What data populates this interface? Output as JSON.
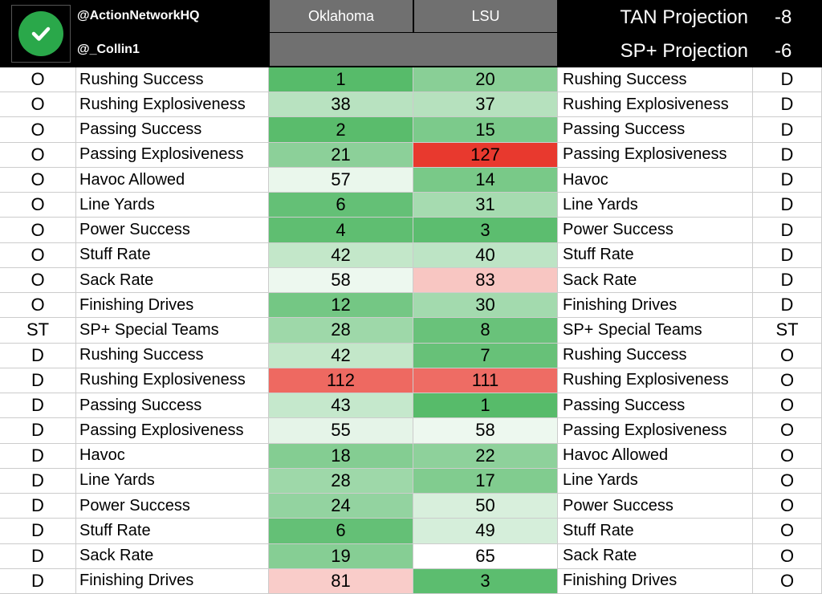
{
  "header": {
    "handle_primary": "@ActionNetworkHQ",
    "handle_secondary": "@_Collin1",
    "team_a": "Oklahoma",
    "team_b": "LSU",
    "projections": [
      {
        "label": "TAN Projection",
        "value": "-8"
      },
      {
        "label": "SP+ Projection",
        "value": "-6"
      }
    ]
  },
  "colors": {
    "best_green": "#57bb6a",
    "neutral_white": "#ffffff",
    "worst_red": "#e8392e"
  },
  "rows": [
    {
      "side_left": "O",
      "stat_left": "Rushing Success",
      "oklahoma": "1",
      "lsu": "20",
      "stat_right": "Rushing Success",
      "side_right": "D"
    },
    {
      "side_left": "O",
      "stat_left": "Rushing Explosiveness",
      "oklahoma": "38",
      "lsu": "37",
      "stat_right": "Rushing Explosiveness",
      "side_right": "D"
    },
    {
      "side_left": "O",
      "stat_left": "Passing Success",
      "oklahoma": "2",
      "lsu": "15",
      "stat_right": "Passing Success",
      "side_right": "D"
    },
    {
      "side_left": "O",
      "stat_left": "Passing Explosiveness",
      "oklahoma": "21",
      "lsu": "127",
      "stat_right": "Passing Explosiveness",
      "side_right": "D"
    },
    {
      "side_left": "O",
      "stat_left": "Havoc Allowed",
      "oklahoma": "57",
      "lsu": "14",
      "stat_right": "Havoc",
      "side_right": "D"
    },
    {
      "side_left": "O",
      "stat_left": "Line Yards",
      "oklahoma": "6",
      "lsu": "31",
      "stat_right": "Line Yards",
      "side_right": "D"
    },
    {
      "side_left": "O",
      "stat_left": "Power Success",
      "oklahoma": "4",
      "lsu": "3",
      "stat_right": "Power Success",
      "side_right": "D"
    },
    {
      "side_left": "O",
      "stat_left": "Stuff Rate",
      "oklahoma": "42",
      "lsu": "40",
      "stat_right": "Stuff Rate",
      "side_right": "D"
    },
    {
      "side_left": "O",
      "stat_left": "Sack Rate",
      "oklahoma": "58",
      "lsu": "83",
      "stat_right": "Sack Rate",
      "side_right": "D"
    },
    {
      "side_left": "O",
      "stat_left": "Finishing Drives",
      "oklahoma": "12",
      "lsu": "30",
      "stat_right": "Finishing Drives",
      "side_right": "D"
    },
    {
      "side_left": "ST",
      "stat_left": "SP+ Special Teams",
      "oklahoma": "28",
      "lsu": "8",
      "stat_right": "SP+ Special Teams",
      "side_right": "ST"
    },
    {
      "side_left": "D",
      "stat_left": "Rushing Success",
      "oklahoma": "42",
      "lsu": "7",
      "stat_right": "Rushing Success",
      "side_right": "O"
    },
    {
      "side_left": "D",
      "stat_left": "Rushing Explosiveness",
      "oklahoma": "112",
      "lsu": "111",
      "stat_right": "Rushing Explosiveness",
      "side_right": "O"
    },
    {
      "side_left": "D",
      "stat_left": "Passing Success",
      "oklahoma": "43",
      "lsu": "1",
      "stat_right": "Passing Success",
      "side_right": "O"
    },
    {
      "side_left": "D",
      "stat_left": "Passing Explosiveness",
      "oklahoma": "55",
      "lsu": "58",
      "stat_right": "Passing Explosiveness",
      "side_right": "O"
    },
    {
      "side_left": "D",
      "stat_left": "Havoc",
      "oklahoma": "18",
      "lsu": "22",
      "stat_right": "Havoc Allowed",
      "side_right": "O"
    },
    {
      "side_left": "D",
      "stat_left": "Line Yards",
      "oklahoma": "28",
      "lsu": "17",
      "stat_right": "Line Yards",
      "side_right": "O"
    },
    {
      "side_left": "D",
      "stat_left": "Power Success",
      "oklahoma": "24",
      "lsu": "50",
      "stat_right": "Power Success",
      "side_right": "O"
    },
    {
      "side_left": "D",
      "stat_left": "Stuff Rate",
      "oklahoma": "6",
      "lsu": "49",
      "stat_right": "Stuff Rate",
      "side_right": "O"
    },
    {
      "side_left": "D",
      "stat_left": "Sack Rate",
      "oklahoma": "19",
      "lsu": "65",
      "stat_right": "Sack Rate",
      "side_right": "O"
    },
    {
      "side_left": "D",
      "stat_left": "Finishing Drives",
      "oklahoma": "81",
      "lsu": "3",
      "stat_right": "Finishing Drives",
      "side_right": "O"
    }
  ]
}
